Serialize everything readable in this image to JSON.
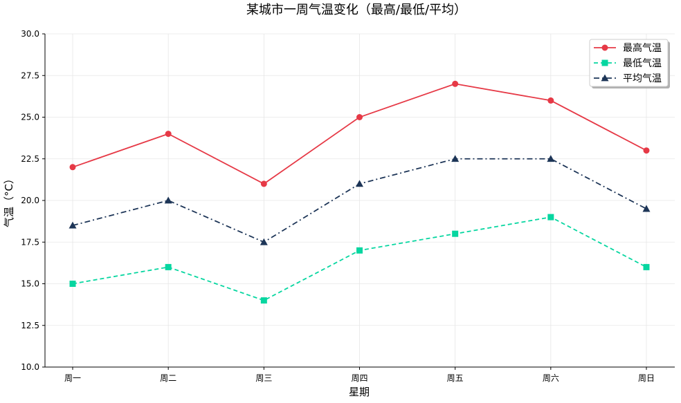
{
  "chart_data": {
    "type": "line",
    "title": "某城市一周气温变化（最高/最低/平均）",
    "xlabel": "星期",
    "ylabel": "气温（°C）",
    "categories": [
      "周一",
      "周二",
      "周三",
      "周四",
      "周五",
      "周六",
      "周日"
    ],
    "ylim": [
      10.0,
      30.0
    ],
    "yticks": [
      "10.0",
      "12.5",
      "15.0",
      "17.5",
      "20.0",
      "22.5",
      "25.0",
      "27.5",
      "30.0"
    ],
    "grid": true,
    "legend_position": "top-right",
    "series": [
      {
        "name": "最高气温",
        "values": [
          22,
          24,
          21,
          25,
          27,
          26,
          23
        ],
        "color": "#e63946",
        "line_style": "solid",
        "marker": "circle"
      },
      {
        "name": "最低气温",
        "values": [
          15,
          16,
          14,
          17,
          18,
          19,
          16
        ],
        "color": "#06d6a0",
        "line_style": "dashed",
        "marker": "square"
      },
      {
        "name": "平均气温",
        "values": [
          18.5,
          20,
          17.5,
          21,
          22.5,
          22.5,
          19.5
        ],
        "color": "#1d3557",
        "line_style": "dashdot",
        "marker": "triangle"
      }
    ]
  }
}
